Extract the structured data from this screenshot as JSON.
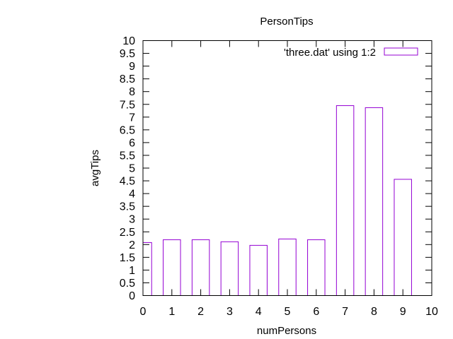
{
  "chart_data": {
    "type": "bar",
    "title": "PersonTips",
    "xlabel": "numPersons",
    "ylabel": "avgTips",
    "xlim": [
      0,
      10
    ],
    "ylim": [
      0,
      10
    ],
    "x_ticks": [
      "0",
      "1",
      "2",
      "3",
      "4",
      "5",
      "6",
      "7",
      "8",
      "9",
      "10"
    ],
    "y_ticks": [
      "0",
      "0.5",
      "1",
      "1.5",
      "2",
      "2.5",
      "3",
      "3.5",
      "4",
      "4.5",
      "5",
      "5.5",
      "6",
      "6.5",
      "7",
      "7.5",
      "8",
      "8.5",
      "9",
      "9.5",
      "10"
    ],
    "bar_width": 0.6,
    "series": [
      {
        "name": "'three.dat' using 1:2",
        "color": "#9400d3",
        "x": [
          0,
          1,
          2,
          3,
          4,
          5,
          6,
          7,
          8,
          9
        ],
        "values": [
          2.08,
          2.19,
          2.19,
          2.11,
          1.97,
          2.22,
          2.19,
          7.45,
          7.37,
          4.56
        ]
      }
    ],
    "legend_position": "top-right",
    "grid": false
  }
}
